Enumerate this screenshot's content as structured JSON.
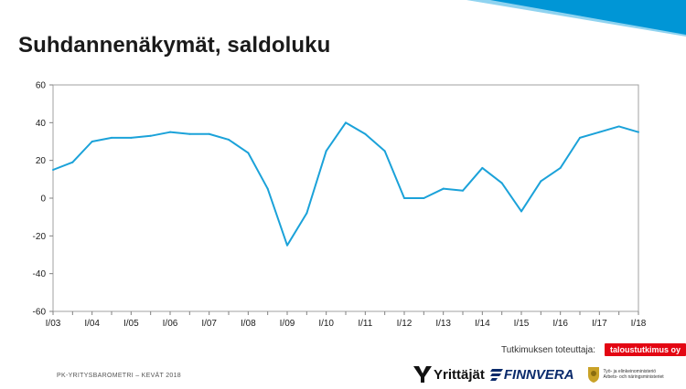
{
  "page_title": "Suhdannenäkymät, saldoluku",
  "footer": {
    "source": "PK-YRITYSBAROMETRI – KEVÄT 2018",
    "provider_label": "Tutkimuksen toteuttaja:",
    "provider_badge": "taloustutkimus oy",
    "logos": {
      "yrittajat": "Yrittäjät",
      "finnvera": "FINNVERA",
      "tem_line1": "Työ- ja elinkeinoministeriö",
      "tem_line2": "Arbets- och näringsministeriet"
    }
  },
  "colors": {
    "line": "#1ba2d9",
    "ribbon": "#0096d6",
    "badge": "#e30613",
    "finnvera": "#0a2a6b"
  },
  "chart_data": {
    "type": "line",
    "title": "Suhdannenäkymät, saldoluku",
    "xlabel": "",
    "ylabel": "",
    "ylim": [
      -60,
      60
    ],
    "yticks": [
      -60,
      -40,
      -20,
      0,
      20,
      40,
      60
    ],
    "grid": false,
    "xticklabels": [
      "I/03",
      "I/04",
      "I/05",
      "I/06",
      "I/07",
      "I/08",
      "I/09",
      "I/10",
      "I/11",
      "I/12",
      "I/13",
      "I/14",
      "I/15",
      "I/16",
      "I/17",
      "I/18"
    ],
    "series": [
      {
        "values": [
          15,
          19,
          30,
          32,
          32,
          33,
          35,
          34,
          34,
          31,
          24,
          5,
          -25,
          -8,
          25,
          40,
          34,
          25,
          0,
          0,
          5,
          4,
          16,
          8,
          -7,
          9,
          16,
          32,
          35,
          38,
          35
        ]
      }
    ]
  }
}
